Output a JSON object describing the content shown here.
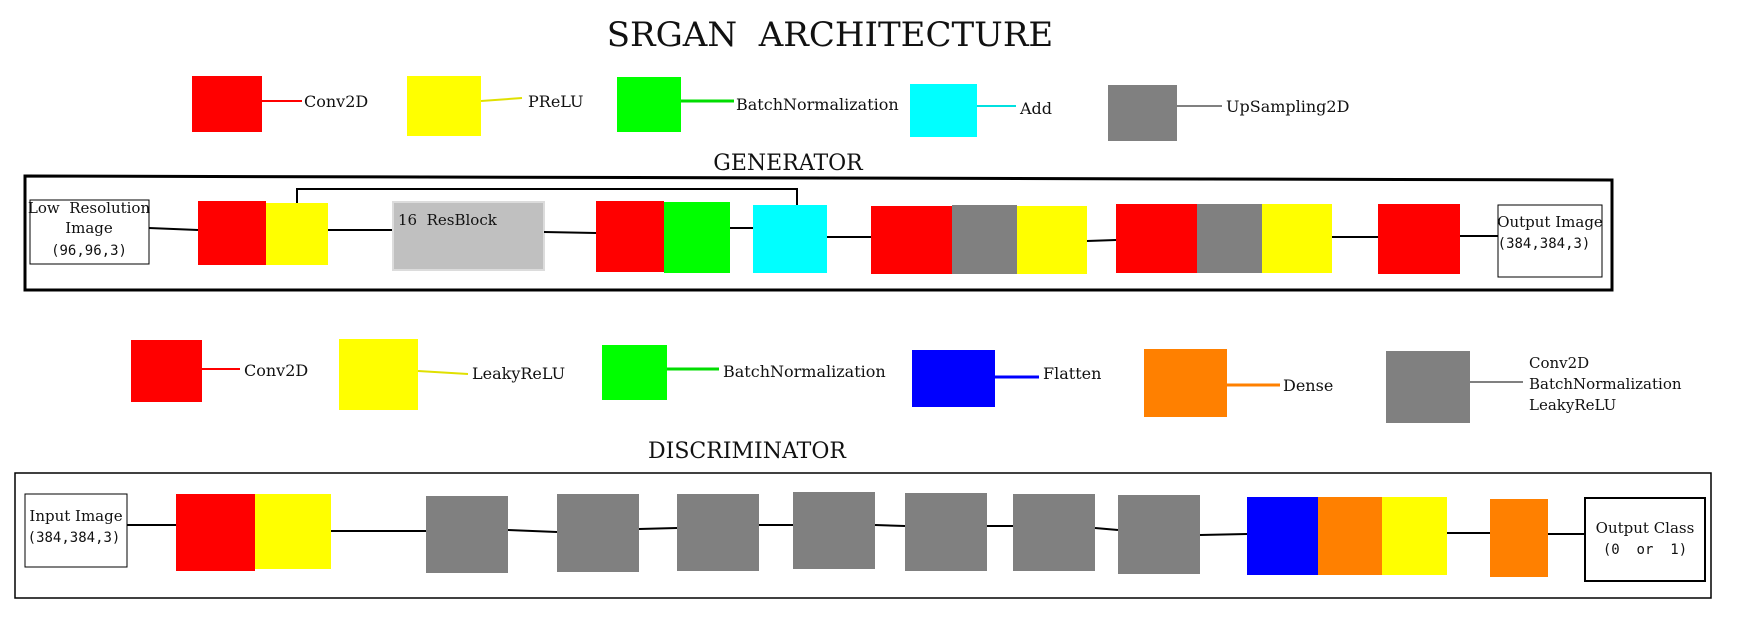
{
  "title": "SRGAN  ARCHITECTURE",
  "colors": {
    "conv2d": "#ff0000",
    "prelu": "#ffff00",
    "batchnorm": "#00ff00",
    "add": "#00ffff",
    "upsampling": "#808080",
    "leakyrelu": "#ffff00",
    "flatten": "#0000ff",
    "dense": "#ff8000",
    "block": "#808080",
    "resblock": "#c0c0c0"
  },
  "generator_legend": {
    "conv2d": "Conv2D",
    "prelu": "PReLU",
    "batchnorm": "BatchNormalization",
    "add": "Add",
    "upsampling": "UpSampling2D"
  },
  "generator": {
    "title": "GENERATOR",
    "input_line1": "Low  Resolution",
    "input_line2": "Image",
    "input_line3": "(96,96,3)",
    "resblock_label": "16  ResBlock",
    "output_line1": "Output Image",
    "output_line2": "(384,384,3)"
  },
  "discriminator_legend": {
    "conv2d": "Conv2D",
    "leakyrelu": "LeakyReLU",
    "batchnorm": "BatchNormalization",
    "flatten": "Flatten",
    "dense": "Dense",
    "block_line1": "Conv2D",
    "block_line2": "BatchNormalization",
    "block_line3": "LeakyReLU"
  },
  "discriminator": {
    "title": "DISCRIMINATOR",
    "input_line1": "Input Image",
    "input_line2": "(384,384,3)",
    "output_line1": "Output Class",
    "output_line2": "(0  or  1)"
  }
}
